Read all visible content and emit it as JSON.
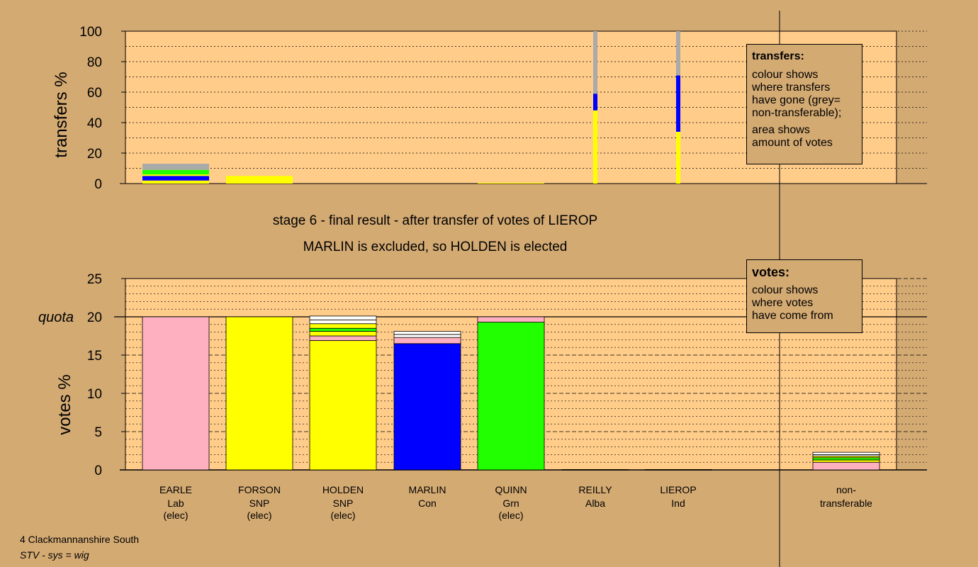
{
  "colors": {
    "background": "#D4AA73",
    "plot_bg": "#FFCC8A",
    "Lab": "#FFB0C0",
    "SNP": "#FFFF00",
    "Con": "#0000FF",
    "Grn": "#22FF00",
    "Alba": "#FFFFFF",
    "Ind": "#FFFFFF",
    "nontransferable": "#AAAAAA"
  },
  "titles": {
    "stage": "stage 6 - final result - after transfer of votes of LIEROP",
    "outcome": "MARLIN is excluded, so HOLDEN is elected"
  },
  "legend_transfers": {
    "title": "transfers:",
    "line1": "colour shows",
    "line2": "where transfers",
    "line3": "have gone (grey=",
    "line4": "non-transferable);",
    "line5": "area shows",
    "line6": "amount of votes"
  },
  "legend_votes": {
    "title": "votes:",
    "line1": "colour shows",
    "line2": "where votes",
    "line3": "have come from"
  },
  "footer": {
    "line1": "4 Clackmannanshire South",
    "line2": "STV - sys = wig"
  },
  "chart_data": [
    {
      "type": "bar",
      "ylabel": "transfers %",
      "ylim": [
        0,
        100
      ],
      "yticks": [
        0,
        20,
        40,
        60,
        80,
        100
      ],
      "grid": true,
      "columns": [
        {
          "candidate": "EARLE",
          "width": "wide",
          "segments": [
            {
              "color": "SNP",
              "value": 2
            },
            {
              "color": "Con",
              "value": 3
            },
            {
              "color": "SNP",
              "value": 1
            },
            {
              "color": "Grn",
              "value": 3
            },
            {
              "color": "nontransferable",
              "value": 4
            }
          ]
        },
        {
          "candidate": "FORSON",
          "width": "wide",
          "segments": [
            {
              "color": "SNP",
              "value": 5
            }
          ]
        },
        {
          "candidate": "HOLDEN",
          "width": "wide",
          "segments": []
        },
        {
          "candidate": "MARLIN",
          "width": "wide",
          "segments": []
        },
        {
          "candidate": "QUINN",
          "width": "wide",
          "segments": [
            {
              "color": "SNP",
              "value": 0.5
            }
          ]
        },
        {
          "candidate": "REILLY",
          "width": "narrow",
          "segments": [
            {
              "color": "SNP",
              "value": 48
            },
            {
              "color": "Con",
              "value": 11
            },
            {
              "color": "nontransferable",
              "value": 41
            }
          ]
        },
        {
          "candidate": "LIEROP",
          "width": "narrow",
          "segments": [
            {
              "color": "SNP",
              "value": 34
            },
            {
              "color": "Con",
              "value": 37
            },
            {
              "color": "nontransferable",
              "value": 29
            }
          ]
        }
      ]
    },
    {
      "type": "bar",
      "ylabel": "votes %",
      "ylim": [
        0,
        25
      ],
      "yticks": [
        0,
        5,
        10,
        15,
        20,
        25
      ],
      "quota": 20,
      "quota_label": "quota",
      "grid": true,
      "candidates": [
        {
          "name": "EARLE",
          "party": "Lab",
          "status": "(elec)",
          "segments": [
            {
              "color": "Lab",
              "value": 20
            }
          ]
        },
        {
          "name": "FORSON",
          "party": "SNP",
          "status": "(elec)",
          "segments": [
            {
              "color": "SNP",
              "value": 20
            }
          ]
        },
        {
          "name": "HOLDEN",
          "party": "SNP",
          "status": "(elec)",
          "segments": [
            {
              "color": "SNP",
              "value": 16.9
            },
            {
              "color": "Lab",
              "value": 0.6
            },
            {
              "color": "SNP",
              "value": 0.6
            },
            {
              "color": "Grn",
              "value": 0.4
            },
            {
              "color": "SNP",
              "value": 0.6
            },
            {
              "color": "Alba",
              "value": 0.5
            },
            {
              "color": "Ind",
              "value": 0.5
            }
          ]
        },
        {
          "name": "MARLIN",
          "party": "Con",
          "status": "",
          "segments": [
            {
              "color": "Con",
              "value": 16.5
            },
            {
              "color": "Lab",
              "value": 0.8
            },
            {
              "color": "Alba",
              "value": 0.4
            },
            {
              "color": "Ind",
              "value": 0.4
            }
          ]
        },
        {
          "name": "QUINN",
          "party": "Grn",
          "status": "(elec)",
          "segments": [
            {
              "color": "Grn",
              "value": 19.3
            },
            {
              "color": "Lab",
              "value": 0.7
            }
          ]
        },
        {
          "name": "REILLY",
          "party": "Alba",
          "status": "",
          "segments": [
            {
              "color": "Alba",
              "value": 0.05
            }
          ]
        },
        {
          "name": "LIEROP",
          "party": "Ind",
          "status": "",
          "segments": [
            {
              "color": "Ind",
              "value": 0.05
            }
          ]
        }
      ],
      "nontransferable": {
        "label_line1": "non-",
        "label_line2": "transferable",
        "segments": [
          {
            "color": "Lab",
            "value": 1.0
          },
          {
            "color": "SNP",
            "value": 0.3
          },
          {
            "color": "Grn",
            "value": 0.3
          },
          {
            "color": "SNP",
            "value": 0.2
          },
          {
            "color": "Alba",
            "value": 0.2
          },
          {
            "color": "Ind",
            "value": 0.3
          }
        ]
      }
    }
  ]
}
